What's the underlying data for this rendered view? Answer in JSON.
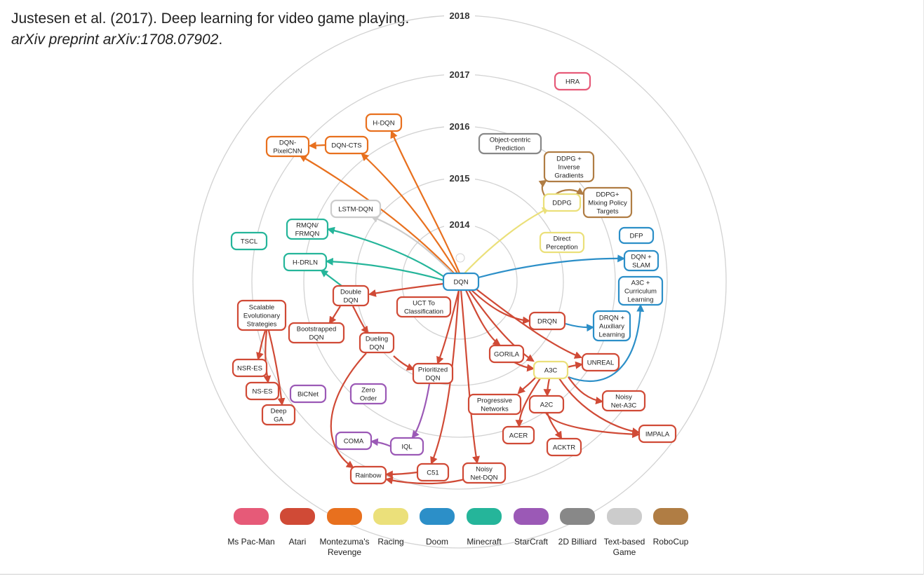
{
  "citation": {
    "authors": "Justesen et al. (2017). Deep learning for video game playing.",
    "source": "arXiv preprint arXiv:1708.07902",
    "period": "."
  },
  "years": [
    "2014",
    "2015",
    "2016",
    "2017",
    "2018"
  ],
  "colors": {
    "pacman": "#e65a78",
    "atari": "#d04a36",
    "montezuma": "#e8701e",
    "racing": "#ebe07a",
    "doom": "#2c8fc8",
    "minecraft": "#25b59a",
    "starcraft": "#9b59b6",
    "billiard": "#888888",
    "text": "#cccccc",
    "robocup": "#b07d44"
  },
  "nodes": {
    "dqn": [
      "DQN"
    ],
    "hra": [
      "HRA"
    ],
    "h_dqn": [
      "H-DQN"
    ],
    "dqn_cts": [
      "DQN-CTS"
    ],
    "dqn_pixelcnn": [
      "DQN-",
      "PixelCNN"
    ],
    "object_centric": [
      "Object-centric",
      "Prediction"
    ],
    "ddpg_inverse": [
      "DDPG +",
      "Inverse",
      "Gradients"
    ],
    "ddpg_mixing": [
      "DDPG+",
      "Mixing Policy",
      "Targets"
    ],
    "ddpg": [
      "DDPG"
    ],
    "lstm_dqn": [
      "LSTM-DQN"
    ],
    "rmqn": [
      "RMQN/",
      "FRMQN"
    ],
    "tscl": [
      "TSCL"
    ],
    "h_drln": [
      "H-DRLN"
    ],
    "direct_perception": [
      "Direct",
      "Perception"
    ],
    "dfp": [
      "DFP"
    ],
    "dqn_slam": [
      "DQN +",
      "SLAM"
    ],
    "a3c_curriculum": [
      "A3C +",
      "Curriculum",
      "Learning"
    ],
    "double_dqn": [
      "Double",
      "DQN"
    ],
    "uct": [
      "UCT To",
      "Classification"
    ],
    "scalable_es": [
      "Scalable",
      "Evolutionary",
      "Strategies"
    ],
    "bootstrapped": [
      "Bootstrapped",
      "DQN"
    ],
    "dueling": [
      "Dueling",
      "DQN"
    ],
    "drqn": [
      "DRQN"
    ],
    "drqn_aux": [
      "DRQN +",
      "Auxiliary",
      "Learning"
    ],
    "gorila": [
      "GORILA"
    ],
    "unreal": [
      "UNREAL"
    ],
    "a3c": [
      "A3C"
    ],
    "nsr_es": [
      "NSR-ES"
    ],
    "prioritized": [
      "Prioritized",
      "DQN"
    ],
    "ns_es": [
      "NS-ES"
    ],
    "bicnet": [
      "BiCNet"
    ],
    "zero_order": [
      "Zero",
      "Order"
    ],
    "progressive": [
      "Progressive",
      "Networks"
    ],
    "a2c": [
      "A2C"
    ],
    "noisy_a3c": [
      "Noisy",
      "Net-A3C"
    ],
    "deep_ga": [
      "Deep",
      "GA"
    ],
    "acer": [
      "ACER"
    ],
    "impala": [
      "IMPALA"
    ],
    "coma": [
      "COMA"
    ],
    "iql": [
      "IQL"
    ],
    "acktr": [
      "ACKTR"
    ],
    "c51": [
      "C51"
    ],
    "noisy_dqn": [
      "Noisy",
      "Net-DQN"
    ],
    "rainbow": [
      "Rainbow"
    ]
  },
  "legend": [
    {
      "color": "#e65a78",
      "lines": [
        "Ms Pac-Man"
      ]
    },
    {
      "color": "#d04a36",
      "lines": [
        "Atari"
      ]
    },
    {
      "color": "#e8701e",
      "lines": [
        "Montezuma's",
        "Revenge"
      ]
    },
    {
      "color": "#ebe07a",
      "lines": [
        "Racing"
      ]
    },
    {
      "color": "#2c8fc8",
      "lines": [
        "Doom"
      ]
    },
    {
      "color": "#25b59a",
      "lines": [
        "Minecraft"
      ]
    },
    {
      "color": "#9b59b6",
      "lines": [
        "StarCraft"
      ]
    },
    {
      "color": "#888888",
      "lines": [
        "2D Billiard"
      ]
    },
    {
      "color": "#cccccc",
      "lines": [
        "Text-based",
        "Game"
      ]
    },
    {
      "color": "#b07d44",
      "lines": [
        "RoboCup"
      ]
    }
  ]
}
